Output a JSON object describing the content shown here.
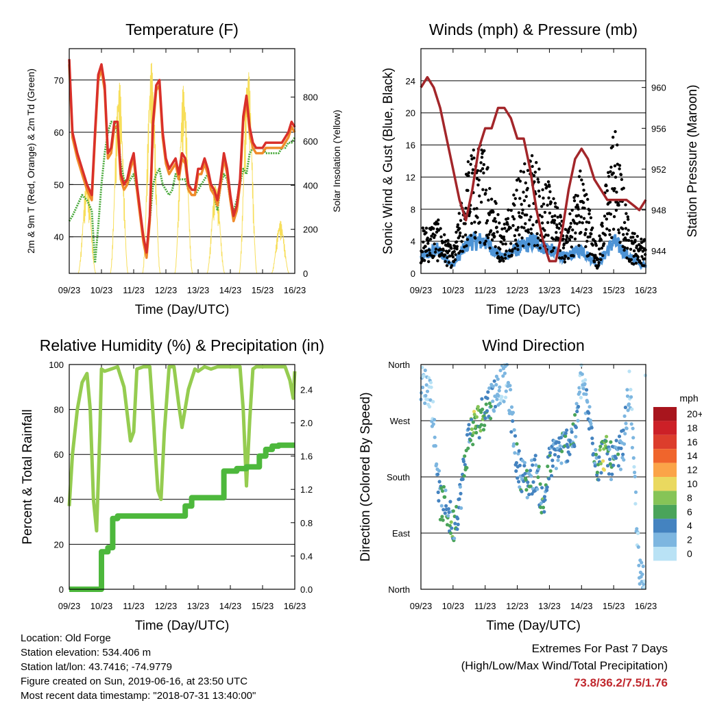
{
  "x_ticks": [
    "09/23",
    "10/23",
    "11/23",
    "12/23",
    "13/23",
    "14/23",
    "15/23",
    "16/23"
  ],
  "x_axis_label": "Time (Day/UTC)",
  "chart_data": [
    {
      "type": "line",
      "title": "Temperature (F)",
      "xlabel": "Time (Day/UTC)",
      "ylabel": "2m & 9m T (Red, Orange) & 2m Td (Green)",
      "y2label": "Solar Insolation (Yellow)",
      "ylim": [
        33,
        76
      ],
      "y_ticks": [
        40,
        50,
        60,
        70
      ],
      "y2lim": [
        0,
        1020
      ],
      "y2_ticks": [
        0,
        200,
        400,
        600,
        800
      ],
      "x": [
        0,
        0.1,
        0.25,
        0.4,
        0.55,
        0.7,
        0.8,
        0.9,
        1.0,
        1.1,
        1.2,
        1.3,
        1.4,
        1.5,
        1.6,
        1.7,
        1.8,
        1.9,
        2.0,
        2.1,
        2.2,
        2.3,
        2.4,
        2.5,
        2.6,
        2.7,
        2.8,
        2.9,
        3.0,
        3.1,
        3.2,
        3.3,
        3.4,
        3.5,
        3.6,
        3.7,
        3.8,
        3.9,
        4.0,
        4.1,
        4.2,
        4.3,
        4.4,
        4.5,
        4.6,
        4.7,
        4.8,
        4.9,
        5.0,
        5.1,
        5.2,
        5.3,
        5.4,
        5.5,
        5.6,
        5.7,
        5.8,
        5.9,
        6.0,
        6.1,
        6.2,
        6.3,
        6.4,
        6.5,
        6.6,
        6.7,
        6.8,
        6.9,
        7.0
      ],
      "grid": true,
      "series": [
        {
          "color": "#d9302a",
          "values": [
            74,
            60,
            56,
            53,
            50,
            48,
            60,
            71,
            73,
            69,
            56,
            57,
            62,
            62,
            52,
            50,
            51,
            54,
            56,
            50,
            45,
            40,
            37,
            44,
            62,
            69,
            70,
            60,
            55,
            53,
            54,
            55,
            52,
            56,
            55,
            50,
            49,
            49,
            53,
            53,
            55,
            53,
            50,
            49,
            47,
            51,
            56,
            53,
            48,
            44,
            46,
            51,
            63,
            67,
            61,
            58,
            57,
            57,
            57,
            58,
            58,
            58,
            58,
            58,
            58,
            59,
            60,
            62,
            61
          ]
        },
        {
          "color": "#f08b2b",
          "values": [
            73,
            59,
            55,
            52,
            49,
            47,
            59,
            70,
            72,
            68,
            55,
            56,
            61,
            61,
            51,
            49,
            50,
            53,
            55,
            49,
            44,
            39,
            36,
            43,
            61,
            68,
            69,
            59,
            54,
            52,
            53,
            54,
            51,
            55,
            54,
            49,
            48,
            48,
            52,
            52,
            54,
            52,
            49,
            48,
            46,
            50,
            55,
            52,
            47,
            43,
            45,
            50,
            62,
            66,
            60,
            57,
            56,
            56,
            56,
            57,
            57,
            57,
            57,
            57,
            57,
            58,
            59,
            61,
            60
          ]
        },
        {
          "color": "#4aaa3c",
          "values": [
            43,
            44,
            46,
            48,
            47,
            45,
            35,
            42,
            50,
            56,
            60,
            62,
            62,
            60,
            54,
            51,
            50,
            51,
            52,
            49,
            45,
            40,
            37,
            43,
            50,
            52,
            53,
            50,
            49,
            48,
            49,
            52,
            51,
            51,
            51,
            49,
            48,
            48,
            49,
            50,
            51,
            52,
            50,
            48,
            45,
            50,
            52,
            51,
            47,
            45,
            47,
            50,
            53,
            52,
            56,
            57,
            57,
            57,
            57,
            56,
            56,
            56,
            56,
            56,
            57,
            57,
            58,
            58,
            59
          ]
        },
        {
          "color": "#f7de5a",
          "values": [
            0,
            0,
            0,
            0,
            0,
            0,
            0,
            0,
            0,
            0,
            0,
            0,
            0,
            0,
            0,
            0,
            0,
            0,
            0,
            0,
            0,
            0,
            0,
            0,
            0,
            0,
            0,
            0,
            0,
            0,
            0,
            0,
            0,
            0,
            0,
            0,
            0,
            0,
            0,
            0,
            0,
            0,
            0,
            0,
            0,
            0,
            0,
            0,
            0,
            0,
            0,
            0,
            0,
            0,
            0,
            0,
            0,
            0,
            0,
            0,
            0,
            0,
            0,
            0,
            0,
            0,
            0,
            0,
            0
          ]
        }
      ]
    },
    {
      "type": "scatter",
      "title": "Winds (mph) & Pressure (mb)",
      "xlabel": "Time (Day/UTC)",
      "ylabel": "Sonic Wind & Gust (Blue, Black)",
      "y2label": "Station Pressure (Maroon)",
      "ylim": [
        0,
        28
      ],
      "y_ticks": [
        0,
        4,
        8,
        12,
        16,
        20,
        24
      ],
      "y2lim": [
        941.8,
        963.8
      ],
      "y2_ticks": [
        944,
        948,
        952,
        956,
        960
      ],
      "grid": true,
      "pressure_series": {
        "color": "#a3262a",
        "x": [
          0,
          0.2,
          0.4,
          0.6,
          0.8,
          1.0,
          1.2,
          1.4,
          1.6,
          1.8,
          2.0,
          2.2,
          2.4,
          2.6,
          2.8,
          3.0,
          3.2,
          3.4,
          3.6,
          3.8,
          4.0,
          4.2,
          4.4,
          4.6,
          4.8,
          5.0,
          5.2,
          5.4,
          5.6,
          5.8,
          6.0,
          6.2,
          6.4,
          6.6,
          6.8,
          7.0
        ],
        "values": [
          960,
          961,
          960,
          958,
          955,
          952,
          949,
          947,
          950,
          954,
          956,
          956,
          958,
          958,
          957,
          955,
          955,
          952,
          948,
          945,
          943,
          943,
          946,
          950,
          953,
          954,
          953,
          951,
          950,
          949,
          949,
          949,
          949,
          948.5,
          948,
          949
        ]
      },
      "wind_series": {
        "color": "#4e94d6",
        "x": [
          0,
          0.5,
          1,
          1.5,
          2,
          2.5,
          3,
          3.5,
          4,
          4.5,
          5,
          5.5,
          6,
          6.5,
          7
        ],
        "values": [
          2,
          3,
          1,
          4,
          4,
          2,
          3,
          4,
          3,
          2,
          3,
          1,
          4,
          2,
          1
        ]
      },
      "gust_series": {
        "color": "#000000",
        "x": [
          0,
          0.5,
          1,
          1.5,
          2,
          2.5,
          3,
          3.5,
          4,
          4.5,
          5,
          5.5,
          6,
          6.5,
          7
        ],
        "values": [
          4,
          5,
          2,
          11,
          12,
          4,
          9,
          11,
          8,
          4,
          10,
          2,
          14,
          4,
          3
        ]
      }
    },
    {
      "type": "line",
      "title": "Relative Humidity (%) & Precipitation (in)",
      "xlabel": "Time (Day/UTC)",
      "ylabel": "Percent & Total Rainfall",
      "ylim": [
        0,
        100
      ],
      "y_ticks": [
        0,
        20,
        40,
        60,
        80,
        100
      ],
      "y2lim": [
        0,
        2.7
      ],
      "y2_ticks": [
        "0.0",
        "0.4",
        "0.8",
        "1.2",
        "1.6",
        "2.0",
        "2.4"
      ],
      "grid": true,
      "series": [
        {
          "color": "#95cc50",
          "x": [
            0,
            0.1,
            0.25,
            0.4,
            0.55,
            0.65,
            0.75,
            0.85,
            0.95,
            1.0,
            1.1,
            1.3,
            1.5,
            1.7,
            1.9,
            2.0,
            2.1,
            2.3,
            2.5,
            2.6,
            2.7,
            2.75,
            2.85,
            2.95,
            3.1,
            3.25,
            3.4,
            3.5,
            3.7,
            3.9,
            4.0,
            4.2,
            4.4,
            4.6,
            4.8,
            5.0,
            5.2,
            5.3,
            5.4,
            5.5,
            5.6,
            5.7,
            5.8,
            6.0,
            6.2,
            6.5,
            6.7,
            6.85,
            6.95,
            7.0
          ],
          "values": [
            37,
            60,
            80,
            92,
            96,
            80,
            40,
            26,
            70,
            98,
            97,
            98,
            99,
            90,
            66,
            70,
            98,
            99,
            99,
            78,
            55,
            44,
            40,
            70,
            99,
            99,
            82,
            72,
            89,
            98,
            97,
            99,
            98,
            99,
            99,
            99,
            99,
            99,
            80,
            46,
            75,
            98,
            99,
            99,
            99,
            99,
            99,
            93,
            85,
            97
          ]
        },
        {
          "color": "#4db83c",
          "x": [
            0,
            0.6,
            0.95,
            1.0,
            1.2,
            1.35,
            1.5,
            1.8,
            2.2,
            2.6,
            3.0,
            3.4,
            3.6,
            3.8,
            4.0,
            4.2,
            4.5,
            4.8,
            5.0,
            5.2,
            5.5,
            5.8,
            5.9,
            6.1,
            6.3,
            6.5,
            7.0
          ],
          "values": [
            0,
            0,
            0,
            0.45,
            0.5,
            0.85,
            0.88,
            0.88,
            0.88,
            0.88,
            0.88,
            0.88,
            1.0,
            1.1,
            1.1,
            1.1,
            1.1,
            1.42,
            1.42,
            1.45,
            1.47,
            1.47,
            1.6,
            1.68,
            1.72,
            1.73,
            1.73
          ]
        }
      ]
    },
    {
      "type": "scatter",
      "title": "Wind Direction",
      "xlabel": "Time (Day/UTC)",
      "ylabel": "Direction (Colored By Speed)",
      "y_ticks": [
        "North",
        "East",
        "South",
        "West",
        "North"
      ],
      "ylim": [
        0,
        360
      ],
      "grid": true,
      "x": [
        0,
        0.3,
        0.6,
        0.8,
        1.0,
        1.2,
        1.5,
        1.8,
        2.0,
        2.5,
        2.7,
        3.0,
        3.3,
        3.6,
        3.8,
        4.0,
        4.2,
        4.5,
        4.8,
        5.0,
        5.5,
        5.7,
        6.0,
        6.3,
        6.5,
        6.8,
        7.0
      ],
      "values": [
        330,
        320,
        140,
        130,
        100,
        140,
        250,
        270,
        290,
        330,
        330,
        200,
        170,
        190,
        130,
        200,
        220,
        230,
        250,
        340,
        200,
        220,
        200,
        230,
        330,
        20,
        10
      ],
      "speed": [
        1,
        1,
        4,
        5,
        5,
        3,
        5,
        7,
        5,
        1,
        1,
        4,
        4,
        3,
        6,
        4,
        3,
        4,
        4,
        1,
        5,
        7,
        4,
        3,
        1,
        2,
        1
      ]
    }
  ],
  "legend": {
    "title": "mph",
    "labels": [
      "20+",
      "18",
      "16",
      "14",
      "12",
      "10",
      "8",
      "6",
      "4",
      "2",
      "0"
    ],
    "colors": [
      "#a8151d",
      "#cc2027",
      "#dc3d2c",
      "#f0652c",
      "#fba448",
      "#ead95f",
      "#86c457",
      "#4aa45a",
      "#4483c0",
      "#7db6e0",
      "#b9e2f5"
    ]
  },
  "station": {
    "location": "Location: Old Forge",
    "elevation": "Station elevation: 534.406 m",
    "latlon": "Station lat/lon: 43.7416; -74.9779",
    "created": "Figure created on Sun, 2019-06-16, at 23:50 UTC",
    "recent": "Most recent data timestamp: \"2018-07-31 13:40:00\""
  },
  "extremes": {
    "heading": "Extremes For Past 7 Days",
    "subheading": "(High/Low/Max Wind/Total Precipitation)",
    "values": "73.8/36.2/7.5/1.76",
    "value_color": "#c0272d"
  }
}
